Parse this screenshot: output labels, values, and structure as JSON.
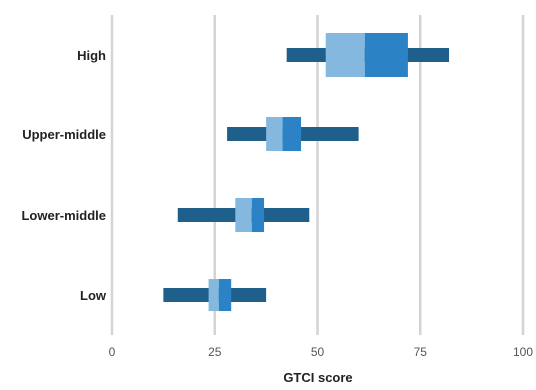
{
  "chart_data": {
    "type": "boxplot",
    "orientation": "horizontal",
    "title": "",
    "xlabel": "GTCI score",
    "ylabel": "",
    "xlim": [
      0,
      100
    ],
    "xticks": [
      0,
      25,
      50,
      75,
      100
    ],
    "xtick_labels": [
      "0",
      "25",
      "50",
      "75",
      "100"
    ],
    "grid": "vertical",
    "legend": "none",
    "categories": [
      "High",
      "Upper-middle",
      "Lower-middle",
      "Low"
    ],
    "boxes": [
      {
        "category": "High",
        "min": 42.5,
        "q1": 52,
        "median": 61.5,
        "q3": 72,
        "max": 82
      },
      {
        "category": "Upper-middle",
        "min": 28,
        "q1": 37.5,
        "median": 41.5,
        "q3": 46,
        "max": 60
      },
      {
        "category": "Lower-middle",
        "min": 16,
        "q1": 30,
        "median": 34,
        "q3": 37,
        "max": 48
      },
      {
        "category": "Low",
        "min": 12.5,
        "q1": 23.5,
        "median": 26,
        "q3": 29,
        "max": 37.5
      }
    ],
    "colors": {
      "whisker": "#1f5f8b",
      "lower_box": "#85b8df",
      "upper_box": "#2b83c6",
      "grid": "#d4d4d4"
    }
  }
}
